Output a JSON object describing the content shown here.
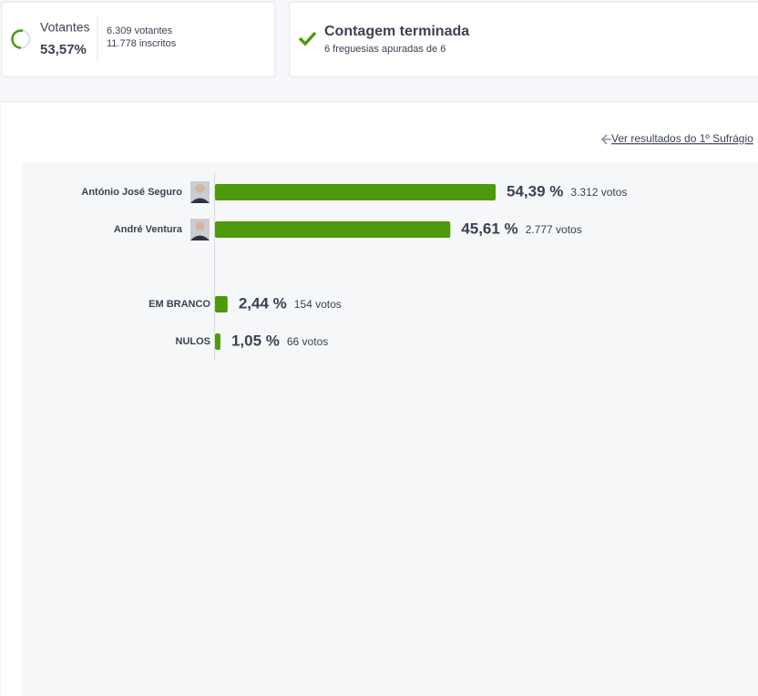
{
  "turnout": {
    "label": "Votantes",
    "value": 53.57,
    "value_label": "53,57%",
    "voters": "6.309 votantes",
    "registered": "11.778 inscritos"
  },
  "status": {
    "title": "Contagem terminada",
    "subtitle": "6 freguesias apuradas de 6"
  },
  "link": "Ver resultados do 1º Sufrágio",
  "results": [
    {
      "name": "António José Seguro",
      "value": 54.39,
      "value_label": "54,39 %",
      "votes": "3.312 votos",
      "photo": true
    },
    {
      "name": "André Ventura",
      "value": 45.61,
      "value_label": "45,61 %",
      "votes": "2.777 votos",
      "photo": true
    },
    {
      "name": "EM BRANCO",
      "value": 2.44,
      "value_label": "2,44 %",
      "votes": "154 votos",
      "photo": false
    },
    {
      "name": "NULOS",
      "value": 1.05,
      "value_label": "1,05 %",
      "votes": "66 votos",
      "photo": false
    }
  ]
}
